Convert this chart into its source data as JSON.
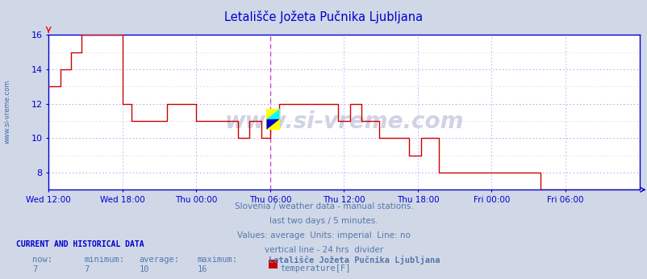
{
  "title": "Letališče Jožeta Pučnika Ljubljana",
  "title_color": "#0000cc",
  "bg_color": "#d0d8e8",
  "plot_bg_color": "#ffffff",
  "grid_color_major": "#aaaaff",
  "grid_color_minor": "#ffcccc",
  "axis_color": "#0000cc",
  "line_color": "#cc0000",
  "vline_color": "#cc44cc",
  "ymin": 7,
  "ymax": 16,
  "yticks": [
    8,
    10,
    12,
    14,
    16
  ],
  "xtick_labels": [
    "Wed 12:00",
    "Wed 18:00",
    "Thu 00:00",
    "Thu 06:00",
    "Thu 12:00",
    "Thu 18:00",
    "Fri 00:00",
    "Fri 06:00"
  ],
  "xtick_positions": [
    0.0,
    0.125,
    0.25,
    0.375,
    0.5,
    0.625,
    0.75,
    0.875
  ],
  "watermark": "www.si-vreme.com",
  "footer_lines": [
    "Slovenia / weather data - manual stations.",
    "last two days / 5 minutes.",
    "Values: average  Units: imperial  Line: no",
    "vertical line - 24 hrs  divider"
  ],
  "current_label": "CURRENT AND HISTORICAL DATA",
  "stats_labels": [
    "now:",
    "minimum:",
    "average:",
    "maximum:"
  ],
  "stats_values": [
    "7",
    "7",
    "10",
    "16"
  ],
  "legend_label": "Letališče Jožeta Pučnika Ljubljana",
  "legend_series": "temperature[F]",
  "legend_color": "#cc0000",
  "vline_x": 0.375,
  "temperature_data": [
    [
      0.0,
      13
    ],
    [
      0.02,
      13
    ],
    [
      0.02,
      14
    ],
    [
      0.038,
      14
    ],
    [
      0.038,
      15
    ],
    [
      0.055,
      15
    ],
    [
      0.055,
      16
    ],
    [
      0.125,
      16
    ],
    [
      0.125,
      12
    ],
    [
      0.14,
      12
    ],
    [
      0.14,
      11
    ],
    [
      0.2,
      11
    ],
    [
      0.2,
      12
    ],
    [
      0.25,
      12
    ],
    [
      0.25,
      11
    ],
    [
      0.32,
      11
    ],
    [
      0.32,
      10
    ],
    [
      0.34,
      10
    ],
    [
      0.34,
      11
    ],
    [
      0.36,
      11
    ],
    [
      0.36,
      10
    ],
    [
      0.375,
      10
    ],
    [
      0.375,
      11
    ],
    [
      0.39,
      11
    ],
    [
      0.39,
      12
    ],
    [
      0.49,
      12
    ],
    [
      0.49,
      11
    ],
    [
      0.51,
      11
    ],
    [
      0.51,
      12
    ],
    [
      0.53,
      12
    ],
    [
      0.53,
      11
    ],
    [
      0.56,
      11
    ],
    [
      0.56,
      10
    ],
    [
      0.61,
      10
    ],
    [
      0.61,
      9
    ],
    [
      0.63,
      9
    ],
    [
      0.63,
      10
    ],
    [
      0.66,
      10
    ],
    [
      0.66,
      8
    ],
    [
      0.67,
      8
    ],
    [
      0.67,
      8
    ],
    [
      0.75,
      8
    ],
    [
      0.75,
      8
    ],
    [
      0.833,
      8
    ],
    [
      0.833,
      7
    ],
    [
      1.0,
      7
    ]
  ]
}
